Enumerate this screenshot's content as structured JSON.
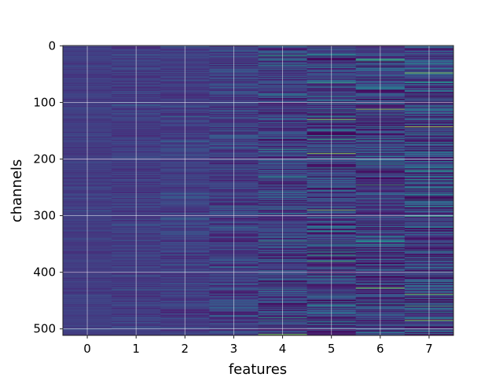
{
  "chart_data": {
    "type": "heatmap",
    "title": "",
    "xlabel": "features",
    "ylabel": "channels",
    "columns": [
      0,
      1,
      2,
      3,
      4,
      5,
      6,
      7
    ],
    "x_ticks": [
      "0",
      "1",
      "2",
      "3",
      "4",
      "5",
      "6",
      "7"
    ],
    "y_ticks": [
      "0",
      "100",
      "200",
      "300",
      "400",
      "500"
    ],
    "rows": 512,
    "ylim": [
      512,
      0
    ],
    "y_axis_inverted": true,
    "grid": true,
    "colormap": "viridis",
    "column_variability": [
      0.06,
      0.09,
      0.1,
      0.15,
      0.2,
      0.25,
      0.26,
      0.28
    ],
    "base_level": 0.18,
    "notable_cells": [
      {
        "feature": 5,
        "channel": 130,
        "value": 0.85
      },
      {
        "feature": 5,
        "channel": 190,
        "value": 0.85
      },
      {
        "feature": 5,
        "channel": 290,
        "value": 0.8
      },
      {
        "feature": 6,
        "channel": 112,
        "value": 0.85
      },
      {
        "feature": 6,
        "channel": 428,
        "value": 0.85
      },
      {
        "feature": 7,
        "channel": 48,
        "value": 0.85
      },
      {
        "feature": 7,
        "channel": 143,
        "value": 0.9
      },
      {
        "feature": 7,
        "channel": 485,
        "value": 0.85
      },
      {
        "feature": 4,
        "channel": 510,
        "value": 0.85
      }
    ]
  }
}
